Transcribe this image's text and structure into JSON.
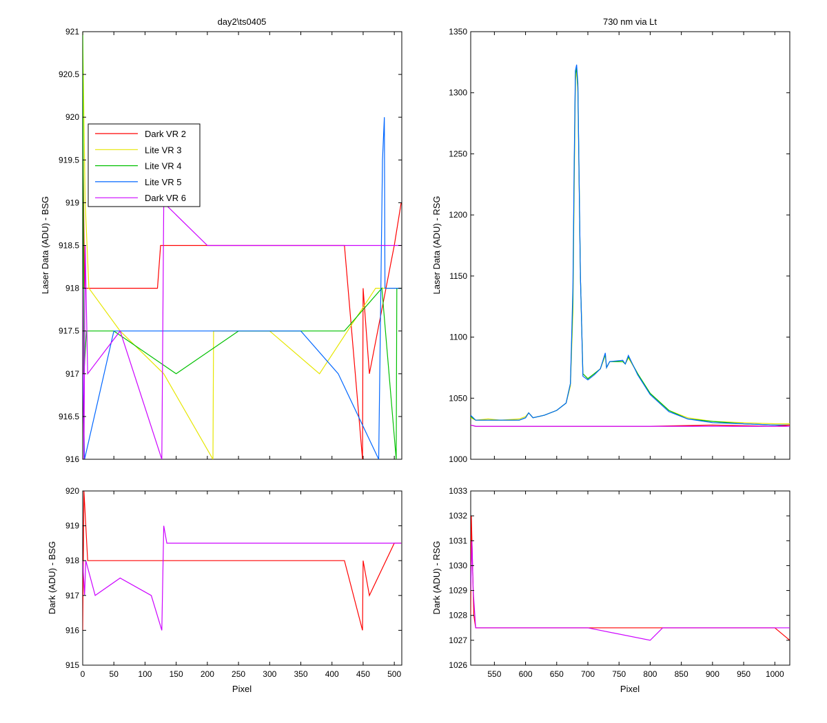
{
  "figure": {
    "series_colors": {
      "dark_vr2": "#ff0000",
      "lite_vr3": "#e6e600",
      "lite_vr4": "#00c000",
      "lite_vr5": "#0066ff",
      "dark_vr6": "#cc00ff"
    }
  },
  "chart_data": [
    {
      "id": "top-left",
      "type": "line",
      "title": "day2\\ts0405",
      "xlabel": "",
      "ylabel": "Laser Data (ADU) - BSG",
      "xlim": [
        0,
        512
      ],
      "ylim": [
        916,
        921
      ],
      "x_ticks": [],
      "y_ticks": [
        916,
        916.5,
        917,
        917.5,
        918,
        918.5,
        919,
        919.5,
        920,
        920.5,
        921
      ],
      "legend": {
        "placement": "upper-left",
        "entries": [
          {
            "label": "Dark VR 2",
            "color": "#ff0000"
          },
          {
            "label": "Lite VR 3",
            "color": "#e6e600"
          },
          {
            "label": "Lite VR 4",
            "color": "#00c000"
          },
          {
            "label": "Lite VR 5",
            "color": "#0066ff"
          },
          {
            "label": "Dark VR 6",
            "color": "#cc00ff"
          }
        ]
      },
      "series": [
        {
          "name": "Dark VR 2",
          "color": "#ff0000",
          "x": [
            0,
            3,
            7,
            20,
            120,
            125,
            420,
            449,
            450,
            460,
            500,
            511
          ],
          "y": [
            920,
            918,
            918,
            918,
            918,
            918.5,
            918.5,
            916,
            918,
            917,
            918.5,
            919
          ]
        },
        {
          "name": "Lite VR 3",
          "color": "#e6e600",
          "x": [
            0,
            4,
            10,
            60,
            130,
            209,
            210,
            300,
            380,
            470,
            511
          ],
          "y": [
            921,
            919,
            918,
            917.5,
            917,
            916,
            917.5,
            917.5,
            917,
            918,
            918
          ]
        },
        {
          "name": "Lite VR 4",
          "color": "#00c000",
          "x": [
            0,
            2,
            6,
            50,
            150,
            250,
            350,
            420,
            480,
            503,
            504,
            511
          ],
          "y": [
            921,
            917,
            917.5,
            917.5,
            917,
            917.5,
            917.5,
            917.5,
            918,
            916,
            918,
            918
          ]
        },
        {
          "name": "Lite VR 5",
          "color": "#0066ff",
          "x": [
            0,
            3,
            50,
            150,
            250,
            350,
            410,
            475,
            481,
            484,
            485,
            511
          ],
          "y": [
            917,
            916,
            917.5,
            917.5,
            917.5,
            917.5,
            917,
            916,
            919.5,
            920,
            918,
            918
          ]
        },
        {
          "name": "Dark VR 6",
          "color": "#cc00ff",
          "x": [
            0,
            2,
            4,
            8,
            60,
            127,
            130,
            200,
            300,
            400,
            500,
            511
          ],
          "y": [
            918,
            916,
            918.5,
            917,
            917.5,
            916,
            919,
            918.5,
            918.5,
            918.5,
            918.5,
            918.5
          ]
        }
      ]
    },
    {
      "id": "top-right",
      "type": "line",
      "title": "730 nm via Lt",
      "xlabel": "",
      "ylabel": "Laser Data (ADU) - RSG",
      "xlim": [
        512,
        1024
      ],
      "ylim": [
        1000,
        1350
      ],
      "x_ticks": [],
      "y_ticks": [
        1000,
        1050,
        1100,
        1150,
        1200,
        1250,
        1300,
        1350
      ],
      "series": [
        {
          "name": "Lite VR 3",
          "color": "#e6e600",
          "x": [
            512,
            520,
            540,
            560,
            590,
            600,
            605,
            612,
            630,
            650,
            665,
            672,
            676,
            678,
            680,
            682,
            684,
            688,
            692,
            700,
            710,
            720,
            728,
            730,
            735,
            756,
            760,
            765,
            780,
            800,
            830,
            860,
            900,
            950,
            1000,
            1024
          ],
          "y": [
            1034,
            1032,
            1033,
            1032,
            1033,
            1035,
            1038,
            1034,
            1036,
            1040,
            1046,
            1060,
            1120,
            1220,
            1310,
            1318,
            1300,
            1150,
            1070,
            1066,
            1070,
            1074,
            1085,
            1075,
            1080,
            1080,
            1078,
            1083,
            1070,
            1054,
            1040,
            1034,
            1031,
            1030,
            1029,
            1029
          ]
        },
        {
          "name": "Lite VR 4",
          "color": "#00c000",
          "x": [
            512,
            520,
            540,
            560,
            590,
            600,
            605,
            612,
            630,
            650,
            665,
            672,
            676,
            678,
            680,
            682,
            684,
            688,
            692,
            700,
            710,
            720,
            728,
            730,
            735,
            756,
            760,
            765,
            780,
            800,
            830,
            860,
            900,
            950,
            1000,
            1024
          ],
          "y": [
            1035,
            1032,
            1032,
            1032,
            1032,
            1034,
            1038,
            1034,
            1036,
            1040,
            1046,
            1062,
            1130,
            1230,
            1315,
            1320,
            1305,
            1150,
            1070,
            1066,
            1070,
            1074,
            1086,
            1075,
            1080,
            1080,
            1078,
            1084,
            1070,
            1054,
            1040,
            1033,
            1031,
            1029,
            1028,
            1028
          ]
        },
        {
          "name": "Lite VR 5",
          "color": "#0066ff",
          "x": [
            512,
            520,
            540,
            560,
            590,
            600,
            605,
            612,
            630,
            650,
            665,
            672,
            676,
            678,
            680,
            682,
            684,
            688,
            692,
            700,
            710,
            720,
            728,
            730,
            735,
            756,
            760,
            765,
            780,
            800,
            830,
            860,
            900,
            950,
            1000,
            1024
          ],
          "y": [
            1036,
            1032,
            1032,
            1032,
            1032,
            1034,
            1038,
            1034,
            1036,
            1040,
            1046,
            1062,
            1140,
            1240,
            1318,
            1323,
            1308,
            1150,
            1068,
            1065,
            1069,
            1074,
            1087,
            1075,
            1080,
            1081,
            1078,
            1085,
            1069,
            1053,
            1039,
            1033,
            1030,
            1029,
            1028,
            1028
          ]
        },
        {
          "name": "Dark VR 2",
          "color": "#ff0000",
          "x": [
            512,
            520,
            600,
            700,
            800,
            900,
            1000,
            1024
          ],
          "y": [
            1028,
            1027,
            1027,
            1027,
            1027,
            1028,
            1027,
            1028
          ]
        },
        {
          "name": "Dark VR 6",
          "color": "#cc00ff",
          "x": [
            512,
            520,
            600,
            700,
            800,
            900,
            1000,
            1024
          ],
          "y": [
            1028,
            1027,
            1027,
            1027,
            1027,
            1027,
            1027,
            1027
          ]
        }
      ]
    },
    {
      "id": "bottom-left",
      "type": "line",
      "title": "",
      "xlabel": "Pixel",
      "ylabel": "Dark (ADU) - BSG",
      "xlim": [
        0,
        512
      ],
      "ylim": [
        915,
        920
      ],
      "x_ticks": [
        0,
        50,
        100,
        150,
        200,
        250,
        300,
        350,
        400,
        450,
        500
      ],
      "y_ticks": [
        915,
        916,
        917,
        918,
        919,
        920
      ],
      "series": [
        {
          "name": "Dark VR 2",
          "color": "#ff0000",
          "x": [
            0,
            2,
            5,
            8,
            120,
            420,
            449,
            450,
            460,
            500,
            511
          ],
          "y": [
            916,
            920,
            919,
            918,
            918,
            918,
            916,
            918,
            917,
            918.5,
            918.5
          ]
        },
        {
          "name": "Dark VR 6",
          "color": "#cc00ff",
          "x": [
            0,
            3,
            5,
            20,
            60,
            110,
            127,
            130,
            135,
            200,
            300,
            400,
            511
          ],
          "y": [
            918,
            917,
            918,
            917,
            917.5,
            917,
            916,
            919,
            918.5,
            918.5,
            918.5,
            918.5,
            918.5
          ]
        }
      ]
    },
    {
      "id": "bottom-right",
      "type": "line",
      "title": "",
      "xlabel": "Pixel",
      "ylabel": "Dark (ADU) - RSG",
      "xlim": [
        512,
        1024
      ],
      "ylim": [
        1026,
        1033
      ],
      "x_ticks": [
        550,
        600,
        650,
        700,
        750,
        800,
        850,
        900,
        950,
        1000
      ],
      "y_ticks": [
        1026,
        1027,
        1028,
        1029,
        1030,
        1031,
        1032,
        1033
      ],
      "series": [
        {
          "name": "Dark VR 2",
          "color": "#ff0000",
          "x": [
            512,
            513,
            515,
            517,
            520,
            600,
            700,
            800,
            900,
            1000,
            1024
          ],
          "y": [
            1028,
            1032,
            1030,
            1028,
            1027.5,
            1027.5,
            1027.5,
            1027.5,
            1027.5,
            1027.5,
            1027
          ]
        },
        {
          "name": "Dark VR 6",
          "color": "#cc00ff",
          "x": [
            512,
            514,
            516,
            520,
            600,
            700,
            800,
            820,
            900,
            1000,
            1024
          ],
          "y": [
            1029,
            1031,
            1029,
            1027.5,
            1027.5,
            1027.5,
            1027,
            1027.5,
            1027.5,
            1027.5,
            1027.5
          ]
        }
      ]
    }
  ]
}
